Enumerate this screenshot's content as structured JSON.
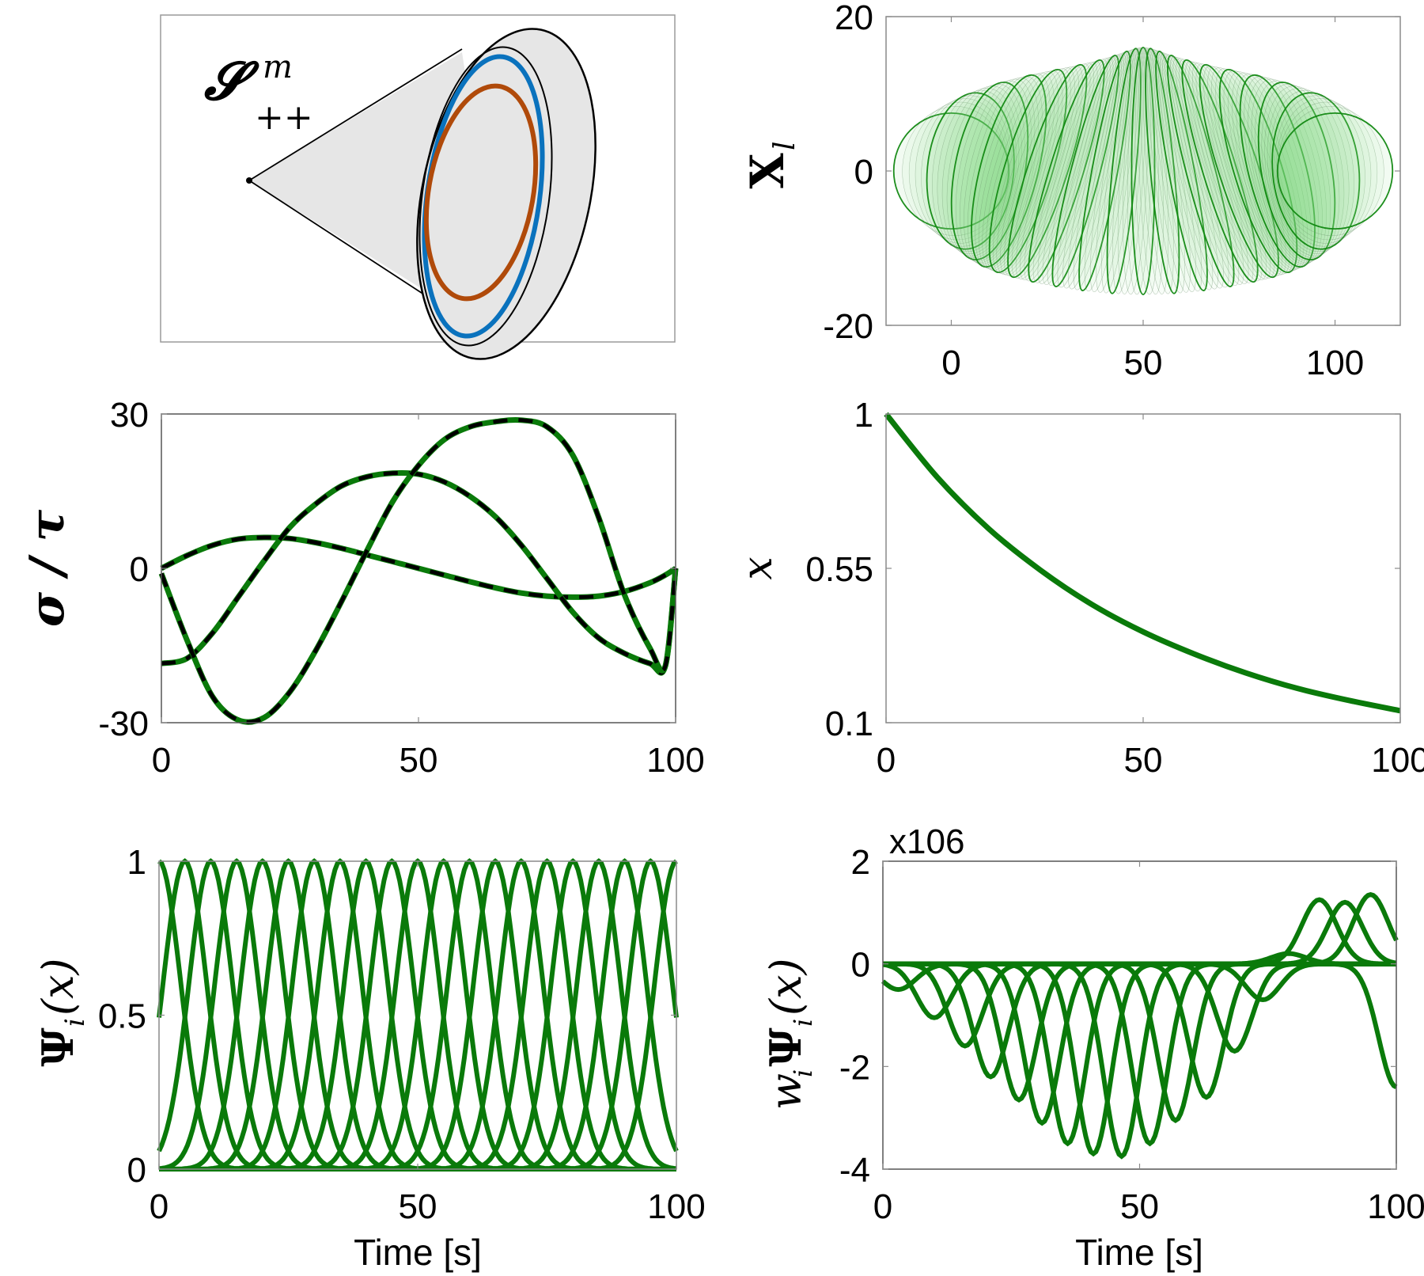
{
  "figure": {
    "panels": [
      "spd-cone-diagram",
      "ellipsoid-trajectory",
      "sigma-over-tau",
      "phase-variable",
      "basis-functions",
      "weighted-basis-functions"
    ]
  },
  "diagram": {
    "label_main": "𝓢",
    "label_sup": "m",
    "label_sub": "++",
    "colors": {
      "cone_fill": "#e6e6e6",
      "outer_ring": "#000000",
      "blue_ellipse": "#0a72bd",
      "orange_ellipse": "#b04a0a"
    }
  },
  "chart_data": [
    {
      "id": "ellipsoid-trajectory",
      "type": "scatter",
      "title": "",
      "xlabel": "",
      "ylabel": "X",
      "ylabel_sub": "l",
      "xlim": [
        -17,
        117
      ],
      "ylim": [
        -20,
        20
      ],
      "xticks": [
        0,
        50,
        100
      ],
      "yticks": [
        -20,
        0,
        20
      ],
      "xtick_labels": [
        "0",
        "50",
        "100"
      ],
      "ytick_labels": [
        "-20",
        "0",
        "20"
      ],
      "ellipse_centers_x": [
        0,
        100
      ],
      "ellipse_center_y": 0,
      "ellipse_semi_axes_at_ends": [
        15,
        7.5
      ],
      "ellipse_semi_axes_at_middle": [
        3,
        16
      ],
      "num_highlighted_ellipses": 21,
      "fill_color": "#7fd47f",
      "edge_color": "#118811"
    },
    {
      "id": "sigma-over-tau",
      "type": "line",
      "xlabel": "",
      "ylabel": "σ / τ",
      "xlim": [
        0,
        100
      ],
      "ylim": [
        -30,
        30
      ],
      "xticks": [
        0,
        50,
        100
      ],
      "yticks": [
        -30,
        0,
        30
      ],
      "xtick_labels": [
        "0",
        "50",
        "100"
      ],
      "ytick_labels": [
        "-30",
        "0",
        "30"
      ],
      "x": [
        0,
        5,
        10,
        15,
        20,
        25,
        30,
        35,
        40,
        45,
        50,
        55,
        60,
        65,
        70,
        75,
        80,
        85,
        90,
        95,
        98,
        100
      ],
      "series": [
        {
          "name": "component-1",
          "style": "solid-green-with-black-dash",
          "values": [
            0,
            2.5,
            4.5,
            5.7,
            6,
            5.8,
            5,
            3.9,
            2.6,
            1.3,
            0,
            -1.3,
            -2.6,
            -3.8,
            -4.8,
            -5.4,
            -5.6,
            -5.4,
            -4.5,
            -2.8,
            -1.3,
            0
          ]
        },
        {
          "name": "component-2",
          "style": "solid-green-with-black-dash",
          "values": [
            -18.5,
            -17.5,
            -12.5,
            -5.5,
            1.5,
            8,
            12.5,
            16,
            17.8,
            18.5,
            18.3,
            16.8,
            14,
            10,
            4.5,
            -2,
            -8.5,
            -13.5,
            -16.5,
            -18.5,
            -19,
            0
          ]
        },
        {
          "name": "component-3",
          "style": "solid-green-with-black-dash",
          "values": [
            -1,
            -14,
            -25,
            -29.5,
            -29,
            -24,
            -16,
            -6.5,
            3.5,
            13,
            20,
            25,
            27.5,
            28.5,
            28.8,
            27.5,
            22,
            10,
            -5,
            -15.5,
            -19,
            0
          ]
        }
      ],
      "line_colors": {
        "solid": "#0a7a0a",
        "dashed": "#000000"
      }
    },
    {
      "id": "phase-variable",
      "type": "line",
      "xlabel": "",
      "ylabel": "x",
      "xlim": [
        0,
        100
      ],
      "ylim": [
        0.1,
        1
      ],
      "xticks": [
        0,
        50,
        100
      ],
      "yticks": [
        0.1,
        0.55,
        1
      ],
      "xtick_labels": [
        "0",
        "50",
        "100"
      ],
      "ytick_labels": [
        "0.1",
        "0.55",
        "1"
      ],
      "x": [
        0,
        10,
        20,
        30,
        40,
        50,
        60,
        70,
        80,
        90,
        100
      ],
      "series": [
        {
          "name": "x",
          "values": [
            1.0,
            0.815,
            0.665,
            0.545,
            0.445,
            0.365,
            0.3,
            0.245,
            0.2,
            0.165,
            0.135
          ]
        }
      ],
      "line_color": "#0a7a0a"
    },
    {
      "id": "basis-functions",
      "type": "line",
      "xlabel": "Time [s]",
      "ylabel": "Ψ",
      "ylabel_sub": "i",
      "ylabel_arg": "(x)",
      "xlim": [
        0,
        100
      ],
      "ylim": [
        0,
        1
      ],
      "xticks": [
        0,
        50,
        100
      ],
      "yticks": [
        0,
        0.5,
        1
      ],
      "xtick_labels": [
        "0",
        "50",
        "100"
      ],
      "ytick_labels": [
        "0",
        "0.5",
        "1"
      ],
      "basis_centers": [
        0,
        5,
        10,
        15,
        20,
        25,
        30,
        35,
        40,
        45,
        50,
        55,
        60,
        65,
        70,
        75,
        80,
        85,
        90,
        95,
        100
      ],
      "peak_value": 1,
      "line_color": "#0a7a0a"
    },
    {
      "id": "weighted-basis-functions",
      "type": "line",
      "xlabel": "Time [s]",
      "ylabel": "w",
      "ylabel_sub": "i",
      "ylabel_mid": "Ψ",
      "ylabel_arg": "(x)",
      "scale_label": "x106",
      "xlim": [
        0,
        100
      ],
      "ylim": [
        -4,
        2
      ],
      "xticks": [
        0,
        50,
        100
      ],
      "yticks": [
        -4,
        -2,
        0,
        2
      ],
      "xtick_labels": [
        "0",
        "50",
        "100"
      ],
      "ytick_labels": [
        "-4",
        "-2",
        "0",
        "2"
      ],
      "peak_centers": [
        3,
        10,
        16,
        21,
        26.5,
        31,
        36,
        41,
        46.5,
        52,
        57,
        63,
        68.5,
        74,
        79,
        85,
        90,
        95,
        100
      ],
      "peak_values": [
        -0.5,
        -1.05,
        -1.6,
        -2.2,
        -2.65,
        -3.1,
        -3.5,
        -3.7,
        -3.75,
        -3.5,
        -3.05,
        -2.6,
        -1.7,
        -0.7,
        0.2,
        1.25,
        1.2,
        1.35,
        -2.4
      ],
      "line_color": "#0a7a0a"
    }
  ]
}
